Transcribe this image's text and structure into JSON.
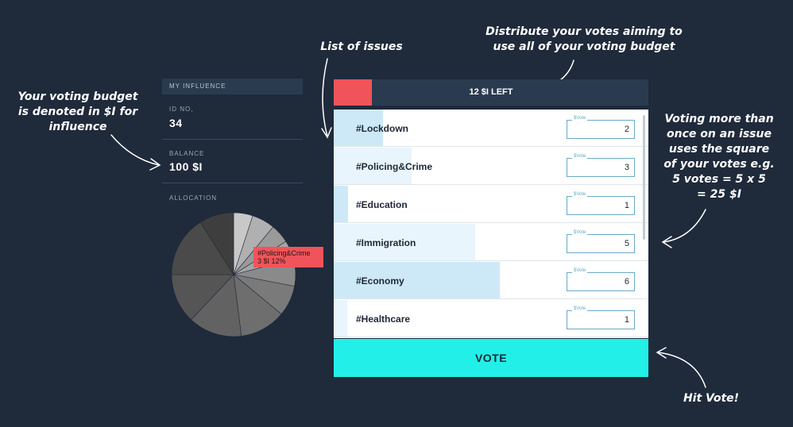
{
  "annotations": {
    "budget_note": [
      "Your voting budget",
      "is denoted in $I for",
      "influence"
    ],
    "issues_note": "List of issues",
    "distribute_note": [
      "Distribute your votes aiming to",
      "use all of your voting budget"
    ],
    "quadratic_note": [
      "Voting more than",
      "once on an issue",
      "uses the square",
      "of your votes e.g.",
      "5 votes = 5 x 5",
      "= 25 $I"
    ],
    "vote_note": "Hit Vote!"
  },
  "influence": {
    "header": "MY INFLUENCE",
    "id_label": "ID NO,",
    "id_value": "34",
    "balance_label": "BALANCE",
    "balance_value": "100 $I",
    "allocation_label": "ALLOCATION"
  },
  "pie_tooltip": {
    "line1": "#Policing&Crime",
    "line2": "3 $I 12%"
  },
  "budget": {
    "text": "12 $I LEFT",
    "used_fraction": 0.12,
    "fill_color": "#f0545a"
  },
  "issues": [
    {
      "name": "#Lockdown",
      "vote_label": "$Vote",
      "votes": "2",
      "bar_fraction": 0.157,
      "bar_color": "#cde9f8"
    },
    {
      "name": "#Policing&Crime",
      "vote_label": "$Vote",
      "votes": "3",
      "bar_fraction": 0.247,
      "bar_color": "#e9f5fc"
    },
    {
      "name": "#Education",
      "vote_label": "$Vote",
      "votes": "1",
      "bar_fraction": 0.045,
      "bar_color": "#cde9f8"
    },
    {
      "name": "#Immigration",
      "vote_label": "$Vote",
      "votes": "5",
      "bar_fraction": 0.449,
      "bar_color": "#e9f5fc"
    },
    {
      "name": "#Economy",
      "vote_label": "$Vote",
      "votes": "6",
      "bar_fraction": 0.529,
      "bar_color": "#cde9f8"
    },
    {
      "name": "#Healthcare",
      "vote_label": "$Vote",
      "votes": "1",
      "bar_fraction": 0.042,
      "bar_color": "#e9f5fc"
    }
  ],
  "vote_button": "VOTE",
  "colors": {
    "background": "#1f2a3b",
    "panel": "#2b3b4f",
    "accent_red": "#f0545a",
    "vote_cyan": "#22f0e8"
  },
  "pie_colors": [
    "#c8c8c8",
    "#b0b0b0",
    "#9a9a9a",
    "#a6a6a6",
    "#8a8a8a",
    "#7a7a7a",
    "#6e6e6e",
    "#626262",
    "#555555",
    "#4a4a4a",
    "#3e3e3e"
  ]
}
